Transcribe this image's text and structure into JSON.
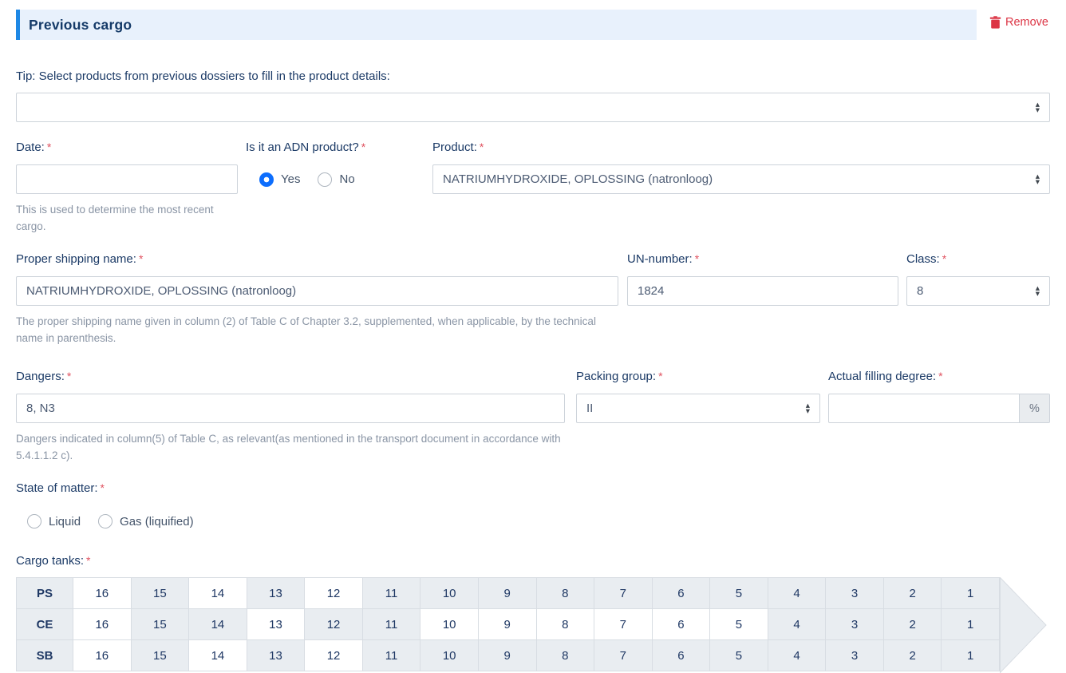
{
  "panel": {
    "title": "Previous cargo",
    "remove_label": "Remove"
  },
  "required_marker": "*",
  "tip_label": "Tip: Select products from previous dossiers to fill in the product details:",
  "previous_products_select": {
    "value": ""
  },
  "fields": {
    "date": {
      "label": "Date:",
      "value": "",
      "help": "This is used to determine the most recent cargo."
    },
    "adn": {
      "label": "Is it an ADN product?",
      "options": [
        "Yes",
        "No"
      ],
      "selected": "Yes"
    },
    "product": {
      "label": "Product:",
      "value": "NATRIUMHYDROXIDE, OPLOSSING (natronloog)"
    },
    "proper_shipping_name": {
      "label": "Proper shipping name:",
      "value": "NATRIUMHYDROXIDE, OPLOSSING (natronloog)",
      "help": "The proper shipping name given in column (2) of Table C of Chapter 3.2, supplemented, when applicable, by the technical name in parenthesis."
    },
    "un_number": {
      "label": "UN-number:",
      "value": "1824"
    },
    "class": {
      "label": "Class:",
      "value": "8"
    },
    "dangers": {
      "label": "Dangers:",
      "value": "8, N3",
      "help": "Dangers indicated in column(5) of Table C, as relevant(as mentioned in the transport document in accordance with 5.4.1.1.2 c)."
    },
    "packing_group": {
      "label": "Packing group:",
      "value": "II"
    },
    "actual_filling_degree": {
      "label": "Actual filling degree:",
      "value": "",
      "unit": "%"
    },
    "state_of_matter": {
      "label": "State of matter:",
      "options": [
        "Liquid",
        "Gas (liquified)"
      ],
      "selected": ""
    },
    "cargo_tanks": {
      "label": "Cargo tanks:"
    }
  },
  "cargo_tanks_table": {
    "columns": [
      16,
      15,
      14,
      13,
      12,
      11,
      10,
      9,
      8,
      7,
      6,
      5,
      4,
      3,
      2,
      1
    ],
    "rows": [
      {
        "name": "PS",
        "white_cells": [
          16,
          14,
          12
        ]
      },
      {
        "name": "CE",
        "white_cells": [
          16,
          13,
          10,
          9,
          8,
          7,
          6,
          5
        ]
      },
      {
        "name": "SB",
        "white_cells": [
          16,
          14,
          12
        ]
      }
    ]
  },
  "colors": {
    "accent_blue": "#1e88e5",
    "header_bg": "#e8f1fc",
    "danger_red": "#dc3545",
    "radio_blue": "#0d6efd",
    "label_navy": "#1b3a66",
    "tank_gray": "#e9edf1"
  }
}
